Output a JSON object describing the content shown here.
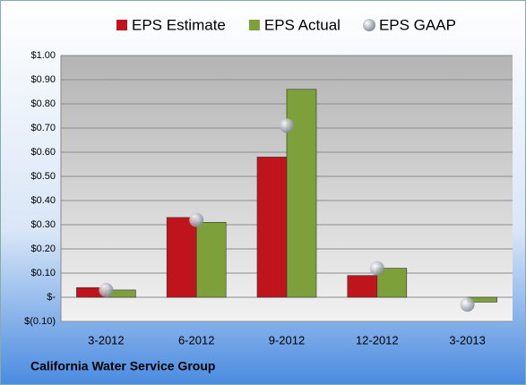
{
  "chart_data": {
    "type": "bar",
    "title": "California Water Service Group",
    "categories": [
      "3-2012",
      "6-2012",
      "9-2012",
      "12-2012",
      "3-2013"
    ],
    "series": [
      {
        "name": "EPS Estimate",
        "color": "#c0141c",
        "values": [
          0.04,
          0.33,
          0.58,
          0.09,
          null
        ]
      },
      {
        "name": "EPS Actual",
        "color": "#7ea03a",
        "values": [
          0.03,
          0.31,
          0.86,
          0.12,
          -0.02
        ]
      },
      {
        "name": "EPS GAAP",
        "color": "#a8aeb6",
        "type": "scatter",
        "values": [
          0.03,
          0.32,
          0.71,
          0.12,
          -0.03
        ]
      }
    ],
    "ylim": [
      -0.1,
      1.0
    ],
    "yticks": [
      {
        "value": -0.1,
        "label": "$(0.10)"
      },
      {
        "value": 0,
        "label": "$-"
      },
      {
        "value": 0.1,
        "label": "$0.10"
      },
      {
        "value": 0.2,
        "label": "$0.20"
      },
      {
        "value": 0.3,
        "label": "$0.30"
      },
      {
        "value": 0.4,
        "label": "$0.40"
      },
      {
        "value": 0.5,
        "label": "$0.50"
      },
      {
        "value": 0.6,
        "label": "$0.60"
      },
      {
        "value": 0.7,
        "label": "$0.70"
      },
      {
        "value": 0.8,
        "label": "$0.80"
      },
      {
        "value": 0.9,
        "label": "$0.90"
      },
      {
        "value": 1.0,
        "label": "$1.00"
      }
    ],
    "grid": true,
    "legend": "top"
  }
}
